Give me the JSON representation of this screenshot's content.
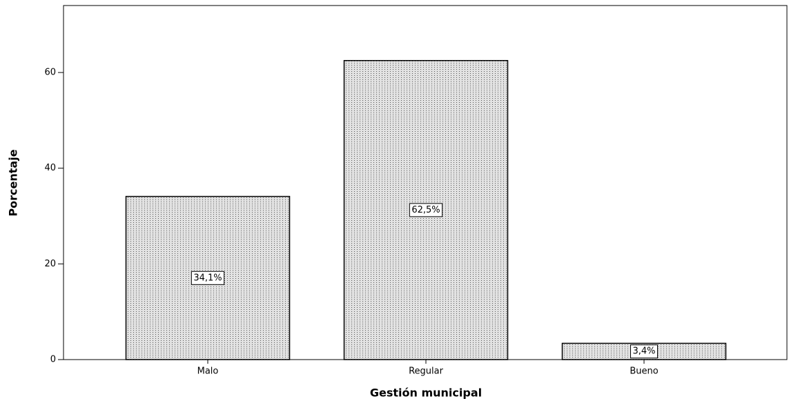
{
  "chart_data": {
    "type": "bar",
    "x_label": "Gestión municipal",
    "y_label": "Porcentaje",
    "categories": [
      "Malo",
      "Regular",
      "Bueno"
    ],
    "values": [
      34.1,
      62.5,
      3.4
    ],
    "value_labels": [
      "34,1%",
      "62,5%",
      "3,4%"
    ],
    "color": "#d4d4d4",
    "ylim": [
      0,
      74
    ],
    "yticks": [
      0,
      20,
      40,
      60
    ]
  }
}
